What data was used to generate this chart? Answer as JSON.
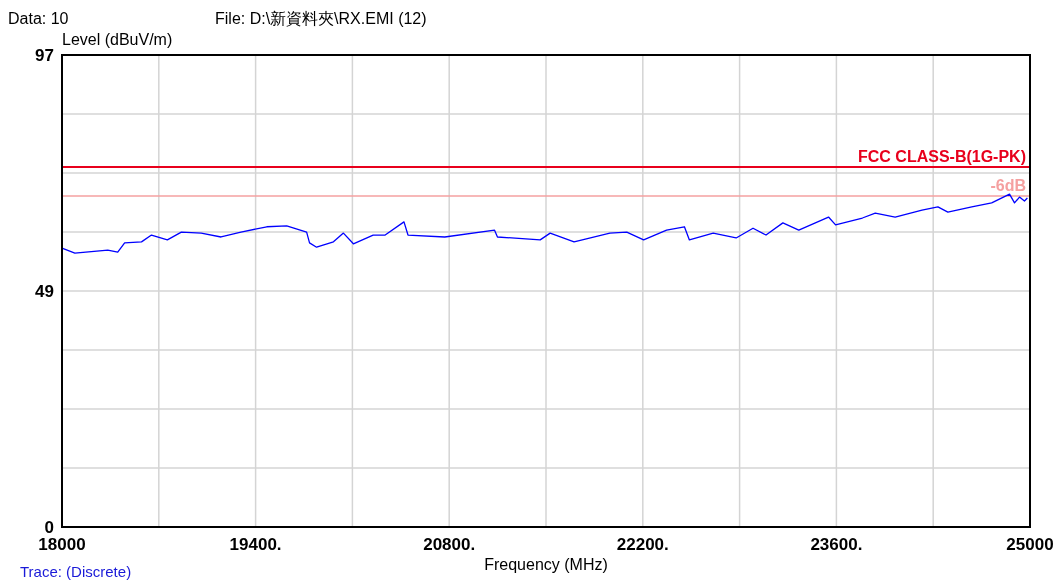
{
  "chart_data": {
    "type": "line",
    "xlabel": "Frequency (MHz)",
    "ylabel": "Level (dBuV/m)",
    "annotations": [
      "Data: 10",
      "File: D:\\新資料夾\\RX.EMI  (12)",
      "Trace: (Discrete)"
    ],
    "xlim": [
      18000,
      25000
    ],
    "ylim": [
      0,
      97
    ],
    "xticks": [
      {
        "value": 18000,
        "label": "18000"
      },
      {
        "value": 18700,
        "label": null
      },
      {
        "value": 19400,
        "label": "19400."
      },
      {
        "value": 20100,
        "label": null
      },
      {
        "value": 20800,
        "label": "20800."
      },
      {
        "value": 21500,
        "label": null
      },
      {
        "value": 22200,
        "label": "22200."
      },
      {
        "value": 22900,
        "label": null
      },
      {
        "value": 23600,
        "label": "23600."
      },
      {
        "value": 24300,
        "label": null
      },
      {
        "value": 25000,
        "label": "25000"
      }
    ],
    "yticks": [
      0,
      {
        "value": 12.125,
        "label": null
      },
      {
        "value": 24.25,
        "label": null
      },
      {
        "value": 36.375,
        "label": null
      },
      {
        "value": 48.5,
        "label": "49"
      },
      {
        "value": 60.625,
        "label": null
      },
      {
        "value": 72.75,
        "label": null
      },
      {
        "value": 84.875,
        "label": null
      },
      97
    ],
    "grid": true,
    "marker": "none",
    "line_style": "solid",
    "ref_lines": [
      {
        "axis": "y",
        "value": 74,
        "label": "FCC CLASS-B(1G-PK)",
        "color": "#e8001c"
      },
      {
        "axis": "y",
        "value": 68,
        "label": "-6dB",
        "color": "#f5a0a0"
      }
    ],
    "series": [
      {
        "color": "#0000ff",
        "x": [
          18000,
          18093,
          18331,
          18403,
          18453,
          18575,
          18647,
          18762,
          18863,
          19007,
          19150,
          19294,
          19481,
          19625,
          19769,
          19790,
          19841,
          19963,
          20035,
          20107,
          20250,
          20337,
          20473,
          20502,
          20768,
          21128,
          21149,
          21458,
          21530,
          21703,
          21962,
          22084,
          22206,
          22372,
          22501,
          22537,
          22709,
          22875,
          22997,
          23091,
          23213,
          23328,
          23543,
          23594,
          23788,
          23881,
          24025,
          24219,
          24334,
          24406,
          24579,
          24723,
          24852,
          24888,
          24924,
          24960,
          24981
        ],
        "values": [
          57.3,
          56.3,
          56.9,
          56.5,
          58.4,
          58.6,
          60.0,
          59.0,
          60.6,
          60.4,
          59.6,
          60.6,
          61.7,
          61.9,
          60.6,
          58.4,
          57.5,
          58.6,
          60.4,
          58.2,
          60.0,
          60.0,
          62.7,
          60.0,
          59.6,
          61.0,
          59.6,
          59.0,
          60.4,
          58.6,
          60.4,
          60.6,
          59.0,
          61.0,
          61.7,
          59.0,
          60.4,
          59.4,
          61.4,
          60.0,
          62.5,
          61.0,
          63.7,
          62.1,
          63.5,
          64.5,
          63.7,
          65.1,
          65.8,
          64.7,
          65.8,
          66.6,
          68.4,
          66.6,
          67.8,
          67.0,
          67.6
        ]
      }
    ]
  }
}
